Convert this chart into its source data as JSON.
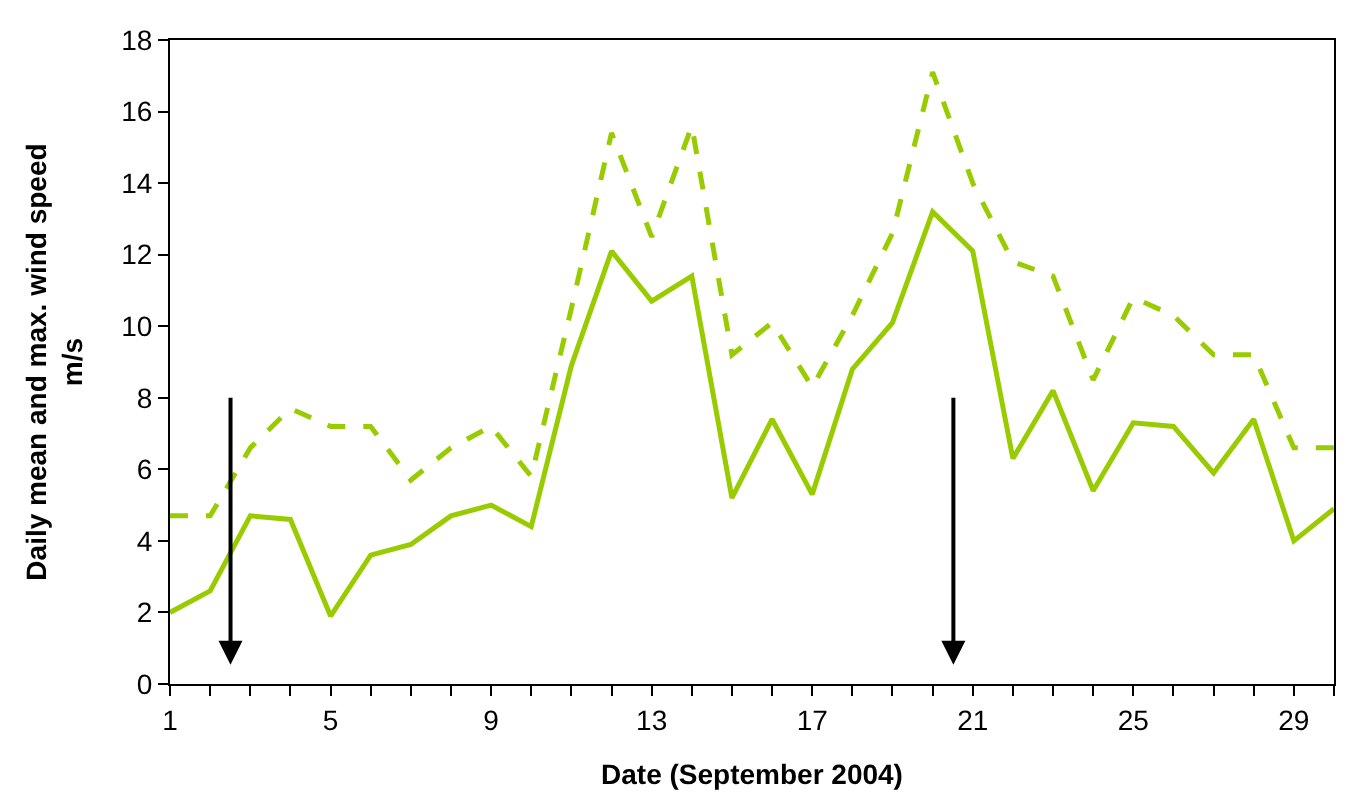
{
  "chart_data": {
    "type": "line",
    "xlabel": "Date (September 2004)",
    "ylabel": "Daily mean and max. wind speed\nm/s",
    "x": [
      1,
      2,
      3,
      4,
      5,
      6,
      7,
      8,
      9,
      10,
      11,
      12,
      13,
      14,
      15,
      16,
      17,
      18,
      19,
      20,
      21,
      22,
      23,
      24,
      25,
      26,
      27,
      28,
      29,
      30
    ],
    "series": [
      {
        "color": "#99cc00",
        "line_style": "solid",
        "values": [
          2.0,
          2.6,
          4.7,
          4.6,
          1.9,
          3.6,
          3.9,
          4.7,
          5.0,
          4.4,
          8.9,
          12.1,
          10.7,
          11.4,
          5.2,
          7.4,
          5.3,
          8.8,
          10.1,
          13.2,
          12.1,
          6.3,
          8.2,
          5.4,
          7.3,
          7.2,
          5.9,
          7.4,
          4.0,
          4.9
        ]
      },
      {
        "color": "#99cc00",
        "line_style": "dashed",
        "values": [
          4.7,
          4.7,
          6.6,
          7.7,
          7.2,
          7.2,
          5.7,
          6.6,
          7.2,
          5.8,
          10.5,
          15.4,
          12.5,
          15.6,
          9.2,
          10.1,
          8.3,
          10.3,
          12.6,
          17.1,
          14.0,
          11.8,
          11.4,
          8.5,
          10.8,
          10.3,
          9.2,
          9.2,
          6.6,
          6.6
        ]
      }
    ],
    "xlim": [
      1,
      30
    ],
    "xticks": [
      1,
      {
        "value": 2,
        "label": null
      },
      {
        "value": 3,
        "label": null
      },
      {
        "value": 4,
        "label": null
      },
      5,
      {
        "value": 6,
        "label": null
      },
      {
        "value": 7,
        "label": null
      },
      {
        "value": 8,
        "label": null
      },
      9,
      {
        "value": 10,
        "label": null
      },
      {
        "value": 11,
        "label": null
      },
      {
        "value": 12,
        "label": null
      },
      13,
      {
        "value": 14,
        "label": null
      },
      {
        "value": 15,
        "label": null
      },
      {
        "value": 16,
        "label": null
      },
      17,
      {
        "value": 18,
        "label": null
      },
      {
        "value": 19,
        "label": null
      },
      {
        "value": 20,
        "label": null
      },
      21,
      {
        "value": 22,
        "label": null
      },
      {
        "value": 23,
        "label": null
      },
      {
        "value": 24,
        "label": null
      },
      25,
      {
        "value": 26,
        "label": null
      },
      {
        "value": 27,
        "label": null
      },
      {
        "value": 28,
        "label": null
      },
      29,
      {
        "value": 30,
        "label": null
      }
    ],
    "ylim": [
      0,
      18
    ],
    "yticks": [
      0,
      2,
      4,
      6,
      8,
      10,
      12,
      14,
      16,
      18
    ],
    "grid": false,
    "marker": "none"
  }
}
